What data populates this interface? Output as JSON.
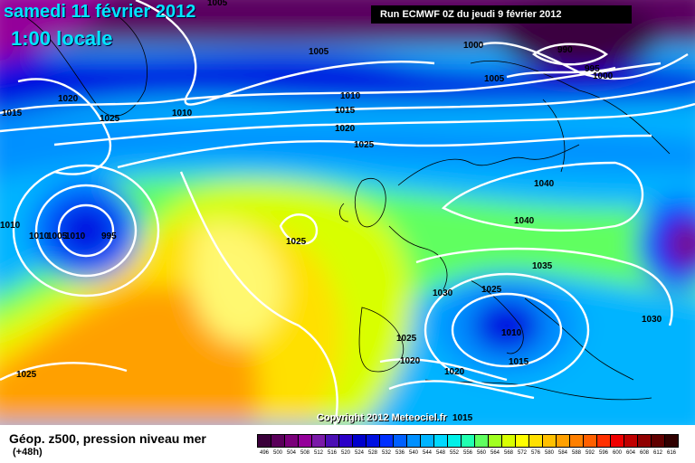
{
  "header": {
    "date": "samedi 11 février 2012",
    "time": "1:00 locale",
    "run": "Run ECMWF 0Z du jeudi 9 février 2012"
  },
  "copyright": "Copyright 2012 Meteociel.fr",
  "legend": {
    "title": "Géop. z500, pression niveau mer",
    "subtitle": "(+48h)",
    "scale_labels": [
      "496",
      "500",
      "504",
      "508",
      "512",
      "516",
      "520",
      "524",
      "528",
      "532",
      "536",
      "540",
      "544",
      "548",
      "552",
      "556",
      "560",
      "564",
      "568",
      "572",
      "576",
      "580",
      "584",
      "588",
      "592",
      "596",
      "600",
      "604",
      "608",
      "612",
      "616"
    ],
    "scale_colors": [
      "#3a003a",
      "#5a005a",
      "#7a007a",
      "#94009a",
      "#7a1aa8",
      "#4b0fb4",
      "#2b00c8",
      "#0000cc",
      "#0010e0",
      "#0030ff",
      "#0060ff",
      "#0090ff",
      "#00b4ff",
      "#00d8ff",
      "#00f0e8",
      "#20ffb0",
      "#60ff60",
      "#a0ff20",
      "#d8ff00",
      "#ffff00",
      "#ffe000",
      "#ffc000",
      "#ffa000",
      "#ff8000",
      "#ff6000",
      "#ff3000",
      "#f00000",
      "#c00000",
      "#900000",
      "#600000",
      "#300000"
    ]
  },
  "isobar_labels": [
    "1005",
    "1005",
    "1000",
    "990",
    "995",
    "1000",
    "1005",
    "1020",
    "1025",
    "1015",
    "1010",
    "1010",
    "1015",
    "1020",
    "1025",
    "1010",
    "1005",
    "1010",
    "1010",
    "995",
    "1025",
    "1040",
    "1040",
    "1035",
    "1030",
    "1025",
    "1030",
    "1010",
    "1025",
    "1015",
    "1020",
    "1020",
    "1025",
    "1015"
  ],
  "colors": {
    "deep_low": "#3a005a",
    "ridge": "#ffe000",
    "isobar": "#ffffff",
    "coast": "#000000"
  }
}
